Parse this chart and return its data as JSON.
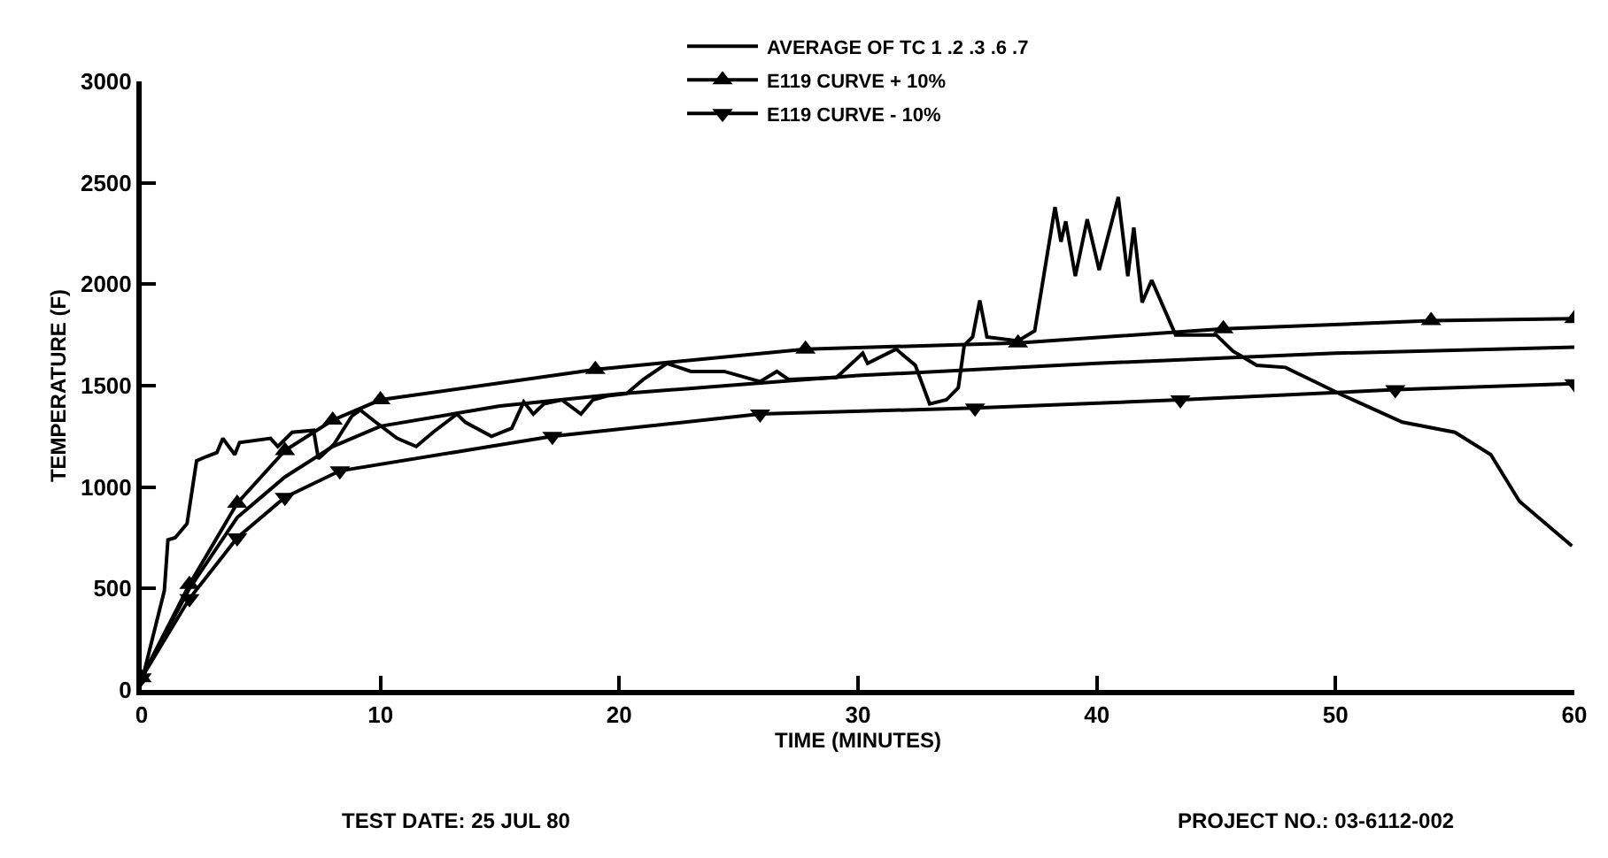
{
  "chart_data": {
    "type": "line",
    "xlabel": "TIME (MINUTES)",
    "ylabel": "TEMPERATURE (F)",
    "xlim": [
      0,
      60
    ],
    "xticks": [
      0,
      10,
      20,
      30,
      40,
      50,
      60
    ],
    "ylim": [
      0,
      3000
    ],
    "yticks": [
      0,
      500,
      1000,
      1500,
      2000,
      2500,
      3000
    ],
    "legend": "top",
    "line_style": "solid",
    "series": [
      {
        "name": "AVERAGE OF TC 1 .2 .3 .6 .7",
        "color": "#000000",
        "marker": "none",
        "x": [
          0,
          0.95,
          1.1,
          1.4,
          1.9,
          2.3,
          2.7,
          3.15,
          3.4,
          3.9,
          4.1,
          5.4,
          5.7,
          6.3,
          7.2,
          7.4,
          8.05,
          8.8,
          9.15,
          9.8,
          10.7,
          11.5,
          12.2,
          13.2,
          13.55,
          14.65,
          15.5,
          16,
          16.4,
          16.85,
          17.6,
          18.4,
          18.9,
          19.5,
          20.3,
          21,
          22,
          23,
          24.4,
          25.9,
          26.6,
          27.1,
          29.1,
          30.2,
          30.4,
          31.6,
          32.4,
          33,
          33.7,
          34.2,
          34.45,
          34.8,
          35.1,
          35.4,
          36.7,
          37.4,
          38.25,
          38.5,
          38.7,
          39.1,
          39.6,
          40.1,
          40.9,
          41.3,
          41.55,
          41.9,
          42.3,
          43.3,
          45,
          45.7,
          46.7,
          47.9,
          50.35,
          52.8,
          55,
          56.5,
          57.7,
          59.9
        ],
        "values": [
          40,
          490,
          740,
          750,
          820,
          1130,
          1150,
          1170,
          1240,
          1160,
          1220,
          1240,
          1200,
          1270,
          1280,
          1140,
          1210,
          1350,
          1380,
          1320,
          1240,
          1200,
          1270,
          1360,
          1320,
          1250,
          1290,
          1420,
          1360,
          1410,
          1430,
          1360,
          1430,
          1450,
          1460,
          1530,
          1610,
          1570,
          1570,
          1520,
          1570,
          1530,
          1540,
          1660,
          1610,
          1680,
          1600,
          1410,
          1430,
          1490,
          1700,
          1740,
          1920,
          1740,
          1720,
          1770,
          2380,
          2210,
          2310,
          2040,
          2320,
          2070,
          2430,
          2040,
          2280,
          1910,
          2020,
          1750,
          1750,
          1670,
          1600,
          1590,
          1450,
          1320,
          1270,
          1160,
          930,
          710
        ]
      },
      {
        "name": "E119 CURVE + 10%",
        "color": "#000000",
        "marker": "triangle",
        "x": [
          0,
          2,
          4,
          6,
          8,
          10,
          19,
          27.8,
          36.7,
          45.3,
          54,
          60
        ],
        "values": [
          60,
          520,
          920,
          1180,
          1330,
          1430,
          1580,
          1680,
          1710,
          1780,
          1820,
          1830
        ]
      },
      {
        "name": "E119 CURVE - 10%",
        "color": "#000000",
        "marker": "triangle-down",
        "x": [
          0,
          2,
          4,
          6,
          8.3,
          17.2,
          25.9,
          34.9,
          43.5,
          52.5,
          60
        ],
        "values": [
          60,
          450,
          750,
          950,
          1080,
          1250,
          1360,
          1390,
          1430,
          1480,
          1510
        ]
      },
      {
        "color": "#000000",
        "marker": "none",
        "x": [
          0,
          2,
          4,
          5,
          6,
          8,
          10,
          15,
          20,
          30,
          40,
          50,
          60
        ],
        "values": [
          60,
          500,
          850,
          950,
          1050,
          1200,
          1300,
          1400,
          1460,
          1550,
          1610,
          1660,
          1690
        ]
      }
    ],
    "annotations": [
      "TEST DATE: 25 JUL 80",
      "PROJECT NO.: 03-6112-002"
    ]
  }
}
